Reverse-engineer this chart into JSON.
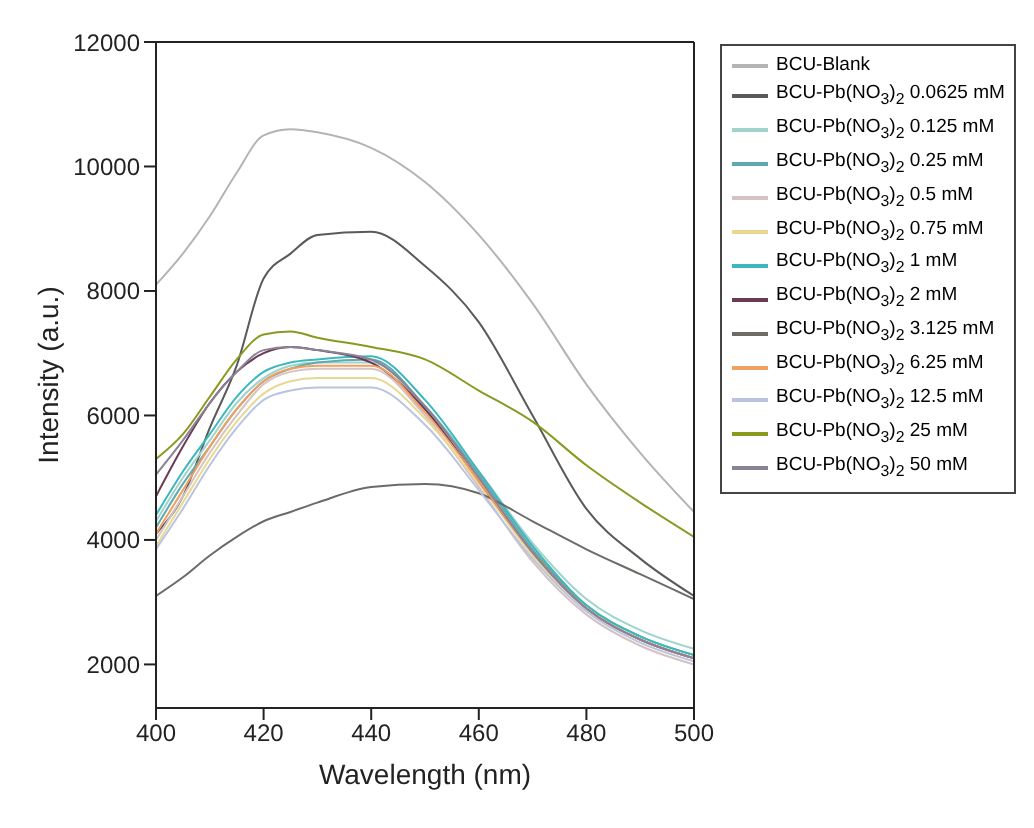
{
  "chart_data": {
    "type": "line",
    "xlabel": "Wavelength (nm)",
    "ylabel": "Intensity (a.u.)",
    "x": [
      400,
      405,
      410,
      415,
      420,
      425,
      430,
      440,
      450,
      460,
      470,
      480,
      490,
      500
    ],
    "xlim": [
      400,
      500
    ],
    "xticks": [
      400,
      420,
      440,
      460,
      480,
      500
    ],
    "ylim": [
      1300,
      12000
    ],
    "yticks": [
      2000,
      4000,
      6000,
      8000,
      10000,
      12000
    ],
    "grid": false,
    "legend": "right",
    "marker": "none",
    "line_style": "solid",
    "series": [
      {
        "name": "BCU-Blank",
        "color": "#b4b4b4",
        "values": [
          8100,
          8600,
          9200,
          9900,
          10500,
          10600,
          10550,
          10300,
          9750,
          8900,
          7800,
          6500,
          5400,
          4450
        ]
      },
      {
        "name": "BCU-Pb(NO$_{3}$)$_{2}$ 0.0625 mM",
        "color": "#5a5a5a",
        "values": [
          4100,
          4700,
          5800,
          6800,
          8200,
          8600,
          8900,
          8950,
          8400,
          7500,
          6000,
          4500,
          3700,
          3100
        ]
      },
      {
        "name": "BCU-Pb(NO$_{3}$)$_{2}$ 0.125 mM",
        "color": "#9fd3cc",
        "values": [
          4300,
          5000,
          5600,
          6200,
          6600,
          6800,
          6850,
          6850,
          6150,
          5100,
          3950,
          3050,
          2550,
          2250
        ]
      },
      {
        "name": "BCU-Pb(NO$_{3}$)$_{2}$ 0.25 mM",
        "color": "#5fa9b0",
        "values": [
          4200,
          4900,
          5500,
          6100,
          6550,
          6750,
          6850,
          6900,
          6150,
          5050,
          3850,
          2950,
          2450,
          2150
        ]
      },
      {
        "name": "BCU-Pb(NO$_{3}$)$_{2}$ 0.5 mM",
        "color": "#d6c2c2",
        "values": [
          4000,
          4700,
          5400,
          6000,
          6500,
          6700,
          6750,
          6750,
          6000,
          4850,
          3650,
          2800,
          2300,
          2000
        ]
      },
      {
        "name": "BCU-Pb(NO$_{3}$)$_{2}$ 0.75 mM",
        "color": "#e8d890",
        "values": [
          3900,
          4600,
          5300,
          5900,
          6350,
          6550,
          6600,
          6600,
          5950,
          4900,
          3750,
          2900,
          2400,
          2100
        ]
      },
      {
        "name": "BCU-Pb(NO$_{3}$)$_{2}$ 1 mM",
        "color": "#3cb8bc",
        "values": [
          4400,
          5100,
          5700,
          6300,
          6700,
          6850,
          6900,
          6950,
          6250,
          5100,
          3900,
          2950,
          2450,
          2150
        ]
      },
      {
        "name": "BCU-Pb(NO$_{3}$)$_{2}$ 2 mM",
        "color": "#6b3a55",
        "values": [
          4700,
          5500,
          6200,
          6700,
          7000,
          7100,
          7050,
          6850,
          6100,
          4950,
          3800,
          2900,
          2400,
          2100
        ]
      },
      {
        "name": "BCU-Pb(NO$_{3}$)$_{2}$ 3.125 mM",
        "color": "#6e6a66",
        "values": [
          3100,
          3400,
          3750,
          4050,
          4300,
          4450,
          4600,
          4850,
          4900,
          4750,
          4300,
          3850,
          3450,
          3050
        ]
      },
      {
        "name": "BCU-Pb(NO$_{3}$)$_{2}$ 6.25 mM",
        "color": "#f0a060",
        "values": [
          4100,
          4800,
          5500,
          6100,
          6550,
          6750,
          6800,
          6800,
          6050,
          4950,
          3800,
          2900,
          2400,
          2100
        ]
      },
      {
        "name": "BCU-Pb(NO$_{3}$)$_{2}$ 12.5 mM",
        "color": "#b8c4e0",
        "values": [
          3850,
          4500,
          5200,
          5800,
          6250,
          6400,
          6450,
          6450,
          5850,
          4800,
          3700,
          2850,
          2350,
          2050
        ]
      },
      {
        "name": "BCU-Pb(NO$_{3}$)$_{2}$ 25 mM",
        "color": "#8a9a20",
        "values": [
          5300,
          5700,
          6300,
          6900,
          7300,
          7350,
          7250,
          7100,
          6900,
          6400,
          5900,
          5200,
          4600,
          4050
        ]
      },
      {
        "name": "BCU-Pb(NO$_{3}$)$_{2}$ 50 mM",
        "color": "#8c8296",
        "values": [
          5050,
          5600,
          6200,
          6700,
          7050,
          7100,
          7050,
          6900,
          6150,
          5000,
          3800,
          2900,
          2400,
          2100
        ]
      }
    ]
  }
}
